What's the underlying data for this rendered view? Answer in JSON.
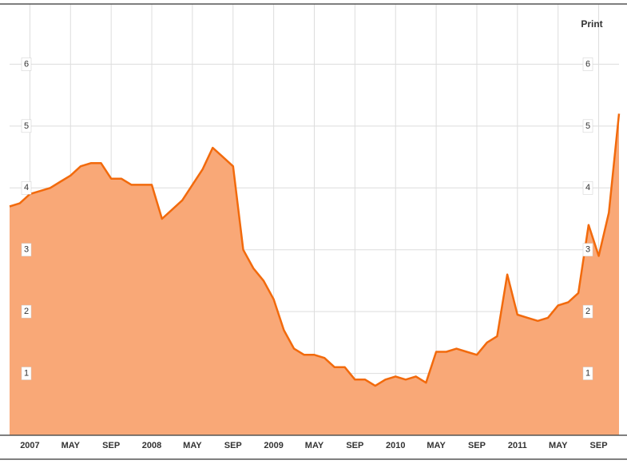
{
  "toolbar": {
    "print": "Print"
  },
  "chart_data": {
    "type": "area",
    "x": [
      "2006-11",
      "2006-12",
      "2007-01",
      "2007-02",
      "2007-03",
      "2007-04",
      "2007-05",
      "2007-06",
      "2007-07",
      "2007-08",
      "2007-09",
      "2007-10",
      "2007-11",
      "2007-12",
      "2008-01",
      "2008-02",
      "2008-03",
      "2008-04",
      "2008-05",
      "2008-06",
      "2008-07",
      "2008-08",
      "2008-09",
      "2008-10",
      "2008-11",
      "2008-12",
      "2009-01",
      "2009-02",
      "2009-03",
      "2009-04",
      "2009-05",
      "2009-06",
      "2009-07",
      "2009-08",
      "2009-09",
      "2009-10",
      "2009-11",
      "2009-12",
      "2010-01",
      "2010-02",
      "2010-03",
      "2010-04",
      "2010-05",
      "2010-06",
      "2010-07",
      "2010-08",
      "2010-09",
      "2010-10",
      "2010-11",
      "2010-12",
      "2011-01",
      "2011-02",
      "2011-03",
      "2011-04",
      "2011-05",
      "2011-06",
      "2011-07",
      "2011-08",
      "2011-09",
      "2011-10",
      "2011-11"
    ],
    "values": [
      3.7,
      3.75,
      3.9,
      3.95,
      4.0,
      4.1,
      4.2,
      4.35,
      4.4,
      4.4,
      4.15,
      4.15,
      4.05,
      4.05,
      4.05,
      3.5,
      3.65,
      3.8,
      4.05,
      4.3,
      4.65,
      4.5,
      4.35,
      3.0,
      2.7,
      2.5,
      2.2,
      1.7,
      1.4,
      1.3,
      1.3,
      1.25,
      1.1,
      1.1,
      0.9,
      0.9,
      0.8,
      0.9,
      0.95,
      0.9,
      0.95,
      0.85,
      1.35,
      1.35,
      1.4,
      1.35,
      1.3,
      1.5,
      1.6,
      2.6,
      1.95,
      1.9,
      1.85,
      1.9,
      2.1,
      2.15,
      2.3,
      3.4,
      2.9,
      3.6,
      5.2
    ],
    "color": "#f26a0c",
    "fill": "#f9a877",
    "xlim": [
      "2006-11",
      "2011-11"
    ],
    "xticks": [
      {
        "value": "2007-01",
        "label": "2007"
      },
      {
        "value": "2007-05",
        "label": "MAY"
      },
      {
        "value": "2007-09",
        "label": "SEP"
      },
      {
        "value": "2008-01",
        "label": "2008"
      },
      {
        "value": "2008-05",
        "label": "MAY"
      },
      {
        "value": "2008-09",
        "label": "SEP"
      },
      {
        "value": "2009-01",
        "label": "2009"
      },
      {
        "value": "2009-05",
        "label": "MAY"
      },
      {
        "value": "2009-09",
        "label": "SEP"
      },
      {
        "value": "2010-01",
        "label": "2010"
      },
      {
        "value": "2010-05",
        "label": "MAY"
      },
      {
        "value": "2010-09",
        "label": "SEP"
      },
      {
        "value": "2011-01",
        "label": "2011"
      },
      {
        "value": "2011-05",
        "label": "MAY"
      },
      {
        "value": "2011-09",
        "label": "SEP"
      }
    ],
    "ylim": [
      0,
      7
    ],
    "yticks": [
      1,
      2,
      3,
      4,
      5,
      6
    ],
    "grid": true
  }
}
